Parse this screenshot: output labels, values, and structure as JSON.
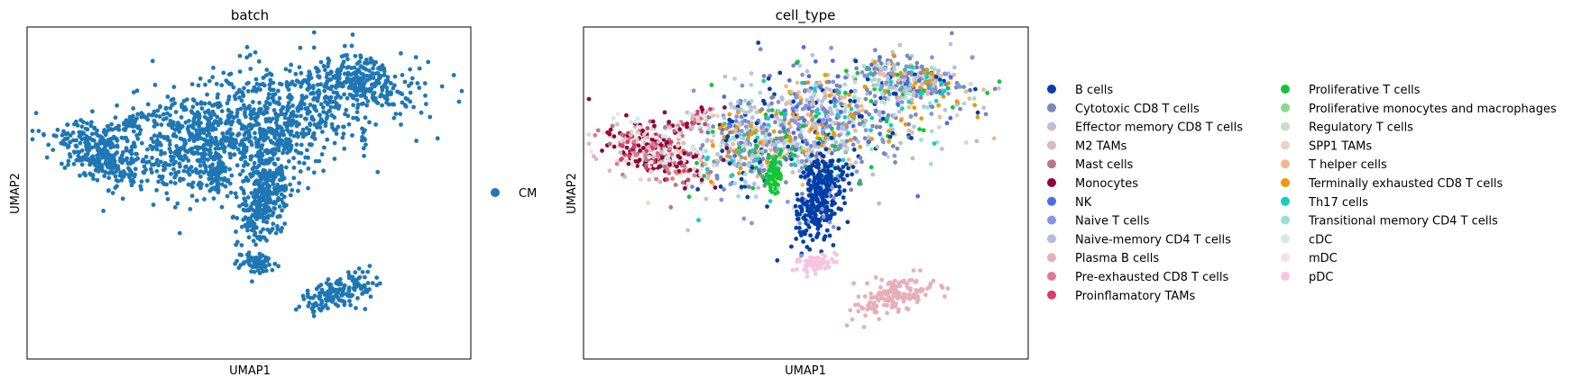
{
  "chart_data": [
    {
      "type": "scatter",
      "title": "batch",
      "xlabel": "UMAP1",
      "ylabel": "UMAP2",
      "xlim": [
        -6,
        16
      ],
      "ylim": [
        -6,
        10
      ],
      "grid": false,
      "legend": "right",
      "point_color": "#1f77b4",
      "series": [
        {
          "name": "CM",
          "color": "#1f77b4"
        }
      ]
    },
    {
      "type": "scatter",
      "title": "cell_type",
      "xlabel": "UMAP1",
      "ylabel": "UMAP2",
      "xlim": [
        -6,
        16
      ],
      "ylim": [
        -6,
        10
      ],
      "grid": false,
      "legend": "right (2 columns)",
      "series": [
        {
          "name": "B cells",
          "color": "#023fa5"
        },
        {
          "name": "Cytotoxic CD8 T cells",
          "color": "#7d87b9"
        },
        {
          "name": "Effector memory CD8 T cells",
          "color": "#bec1d4"
        },
        {
          "name": "M2 TAMs",
          "color": "#d6bcc0"
        },
        {
          "name": "Mast cells",
          "color": "#bb7784"
        },
        {
          "name": "Monocytes",
          "color": "#8e063b"
        },
        {
          "name": "NK",
          "color": "#4a6fe3"
        },
        {
          "name": "Naive T cells",
          "color": "#8595e1"
        },
        {
          "name": "Naive-memory CD4 T cells",
          "color": "#b5bbe3"
        },
        {
          "name": "Plasma B cells",
          "color": "#e6afb9"
        },
        {
          "name": "Pre-exhausted CD8 T cells",
          "color": "#e07b91"
        },
        {
          "name": "Proinflamatory TAMs",
          "color": "#d33f6a"
        },
        {
          "name": "Proliferative T cells",
          "color": "#11c638"
        },
        {
          "name": "Proliferative monocytes and macrophages",
          "color": "#8dd593"
        },
        {
          "name": "Regulatory T cells",
          "color": "#c6dec7"
        },
        {
          "name": "SPP1 TAMs",
          "color": "#ead3c6"
        },
        {
          "name": "T helper cells",
          "color": "#f0b98d"
        },
        {
          "name": "Terminally exhausted CD8 T cells",
          "color": "#ef9708"
        },
        {
          "name": "Th17 cells",
          "color": "#0fcfc0"
        },
        {
          "name": "Transitional memory CD4 T cells",
          "color": "#9cded6"
        },
        {
          "name": "cDC",
          "color": "#d5eae7"
        },
        {
          "name": "mDC",
          "color": "#f3e1eb"
        },
        {
          "name": "pDC",
          "color": "#f6c4e1"
        }
      ]
    }
  ]
}
